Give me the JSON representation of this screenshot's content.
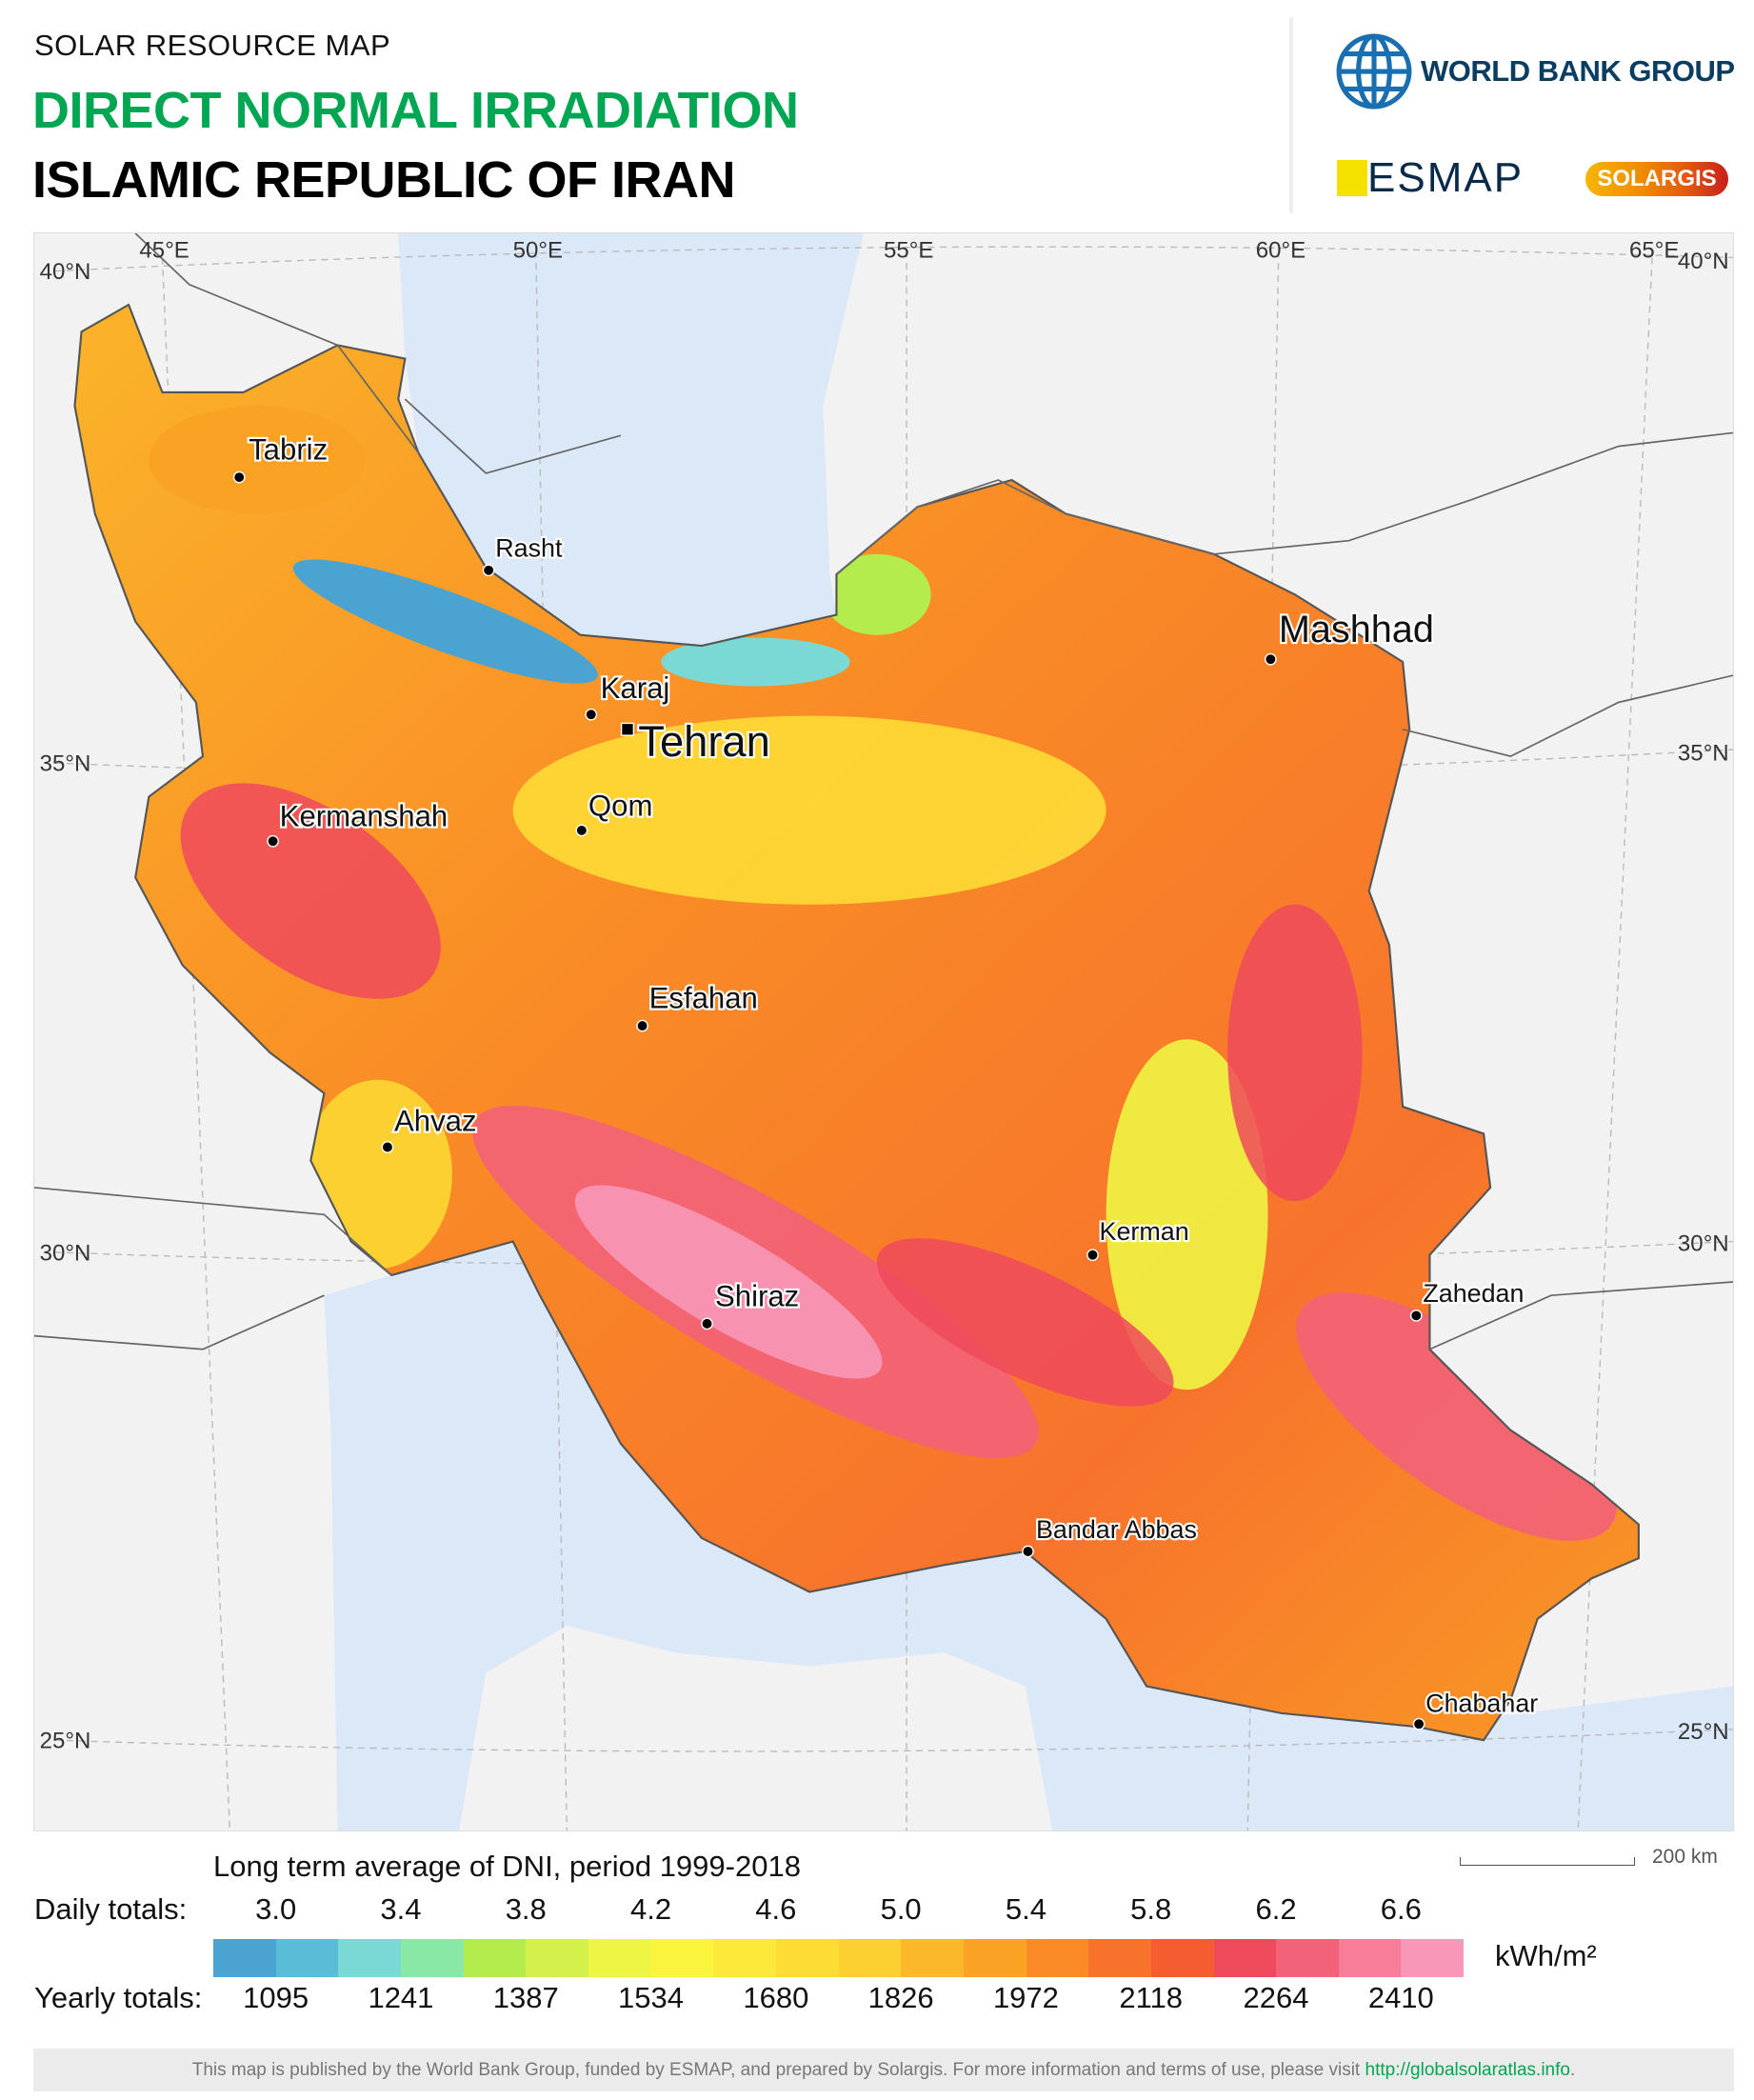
{
  "header": {
    "subtitle": "SOLAR RESOURCE MAP",
    "title": "DIRECT NORMAL IRRADIATION",
    "country": "ISLAMIC REPUBLIC OF IRAN"
  },
  "logos": {
    "world_bank": "WORLD BANK GROUP",
    "esmap": "ESMAP",
    "solargis": "SOLARGIS"
  },
  "map": {
    "colors": {
      "land": "#f2f2f2",
      "sea": "#dbe8f7",
      "border": "#555555"
    },
    "graticule": {
      "lon": [
        "45°E",
        "50°E",
        "55°E",
        "60°E",
        "65°E"
      ],
      "lat": [
        "40°N",
        "35°N",
        "30°N",
        "25°N"
      ]
    },
    "cities": [
      {
        "name": "Tabriz",
        "big": true
      },
      {
        "name": "Rasht",
        "big": false
      },
      {
        "name": "Karaj",
        "big": true
      },
      {
        "name": "Tehran",
        "big": true,
        "capital": true
      },
      {
        "name": "Mashhad",
        "big": true
      },
      {
        "name": "Kermanshah",
        "big": true
      },
      {
        "name": "Qom",
        "big": true
      },
      {
        "name": "Esfahan",
        "big": true
      },
      {
        "name": "Ahvaz",
        "big": true
      },
      {
        "name": "Kerman",
        "big": false
      },
      {
        "name": "Zahedan",
        "big": false
      },
      {
        "name": "Shiraz",
        "big": true
      },
      {
        "name": "Bandar Abbas",
        "big": false
      },
      {
        "name": "Chabahar",
        "big": false
      }
    ],
    "scale_label": "200 km"
  },
  "legend": {
    "title": "Long term average of DNI, period 1999-2018",
    "daily_label": "Daily totals:",
    "yearly_label": "Yearly totals:",
    "daily": [
      "3.0",
      "3.4",
      "3.8",
      "4.2",
      "4.6",
      "5.0",
      "5.4",
      "5.8",
      "6.2",
      "6.6"
    ],
    "yearly": [
      "1095",
      "1241",
      "1387",
      "1534",
      "1680",
      "1826",
      "1972",
      "2118",
      "2264",
      "2410"
    ],
    "unit": "kWh/m²",
    "colors": [
      "#4aa3d0",
      "#5bbcd8",
      "#7ad9d4",
      "#8ae8a6",
      "#b4ec4e",
      "#d4f04a",
      "#eef542",
      "#fbf43c",
      "#fde93a",
      "#fddc36",
      "#fcd030",
      "#fbb82a",
      "#f9a223",
      "#f98a26",
      "#f7732c",
      "#f55c30",
      "#ef4a5c",
      "#f26278",
      "#f67e98",
      "#f897b8"
    ]
  },
  "footer": {
    "text": "This map is published by the World Bank Group, funded by ESMAP, and prepared by Solargis. For more information and terms of use, please visit ",
    "link": "http://globalsolaratlas.info",
    "end": "."
  }
}
